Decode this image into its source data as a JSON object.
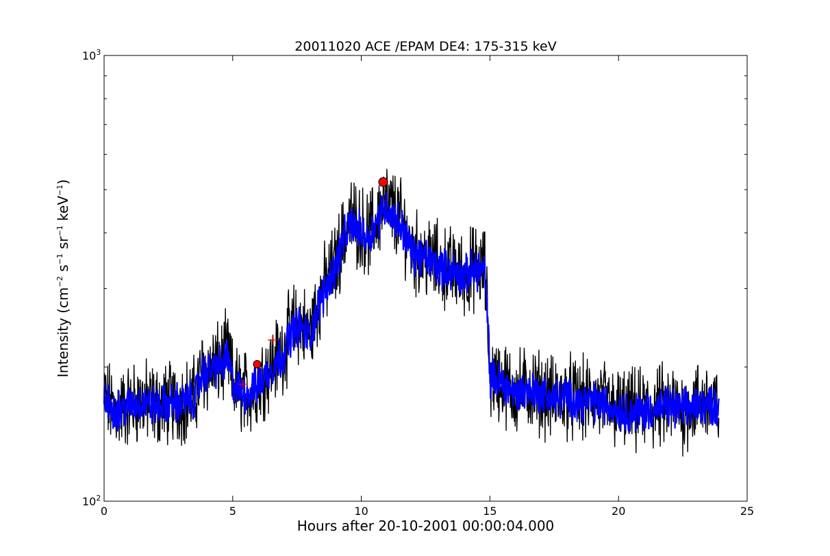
{
  "chart_data": {
    "type": "line",
    "title": "20011020 ACE /EPAM DE4: 175-315 keV",
    "xlabel": "Hours after 20-10-2001 00:00:04.000",
    "ylabel": "Intensity (cm⁻² s⁻¹ sr⁻¹ keV⁻¹)",
    "ylabel_parts": {
      "prefix": "Intensity (cm",
      "e1": "−2",
      "s": " s",
      "e2": "−1",
      "sr": " sr",
      "e3": "−1",
      "kev": " keV",
      "e4": "−1",
      "suffix": ")"
    },
    "xlim": [
      0,
      25
    ],
    "ylim": [
      100,
      1000
    ],
    "yscale": "log",
    "grid": false,
    "x_ticks": [
      0,
      5,
      10,
      15,
      20,
      25
    ],
    "x_tick_labels": [
      "0",
      "5",
      "10",
      "15",
      "20",
      "25"
    ],
    "y_tick_labels": [
      {
        "base": "10",
        "exp": "2",
        "value": 100
      },
      {
        "base": "10",
        "exp": "3",
        "value": 1000
      }
    ],
    "series": [
      {
        "color": "#000000",
        "x": [
          0.0,
          0.3,
          0.6,
          1.0,
          1.5,
          2.0,
          2.5,
          3.0,
          3.5,
          3.8,
          4.2,
          4.6,
          4.8,
          5.0,
          5.4,
          5.8,
          6.0,
          6.3,
          6.6,
          7.0,
          7.3,
          7.6,
          8.0,
          8.3,
          8.6,
          9.0,
          9.3,
          9.6,
          10.0,
          10.3,
          10.6,
          10.9,
          11.2,
          11.6,
          12.0,
          12.4,
          12.8,
          13.2,
          13.6,
          14.0,
          14.4,
          14.8,
          15.0,
          15.5,
          16.0,
          16.5,
          17.0,
          17.5,
          18.0,
          18.5,
          19.0,
          19.5,
          20.0,
          20.5,
          21.0,
          21.5,
          22.0,
          22.5,
          23.0,
          23.5,
          23.9
        ],
        "y": [
          170,
          163,
          160,
          165,
          168,
          164,
          166,
          168,
          170,
          195,
          200,
          205,
          215,
          185,
          175,
          178,
          185,
          195,
          205,
          220,
          245,
          252,
          235,
          275,
          305,
          340,
          390,
          430,
          410,
          395,
          430,
          470,
          450,
          420,
          360,
          355,
          345,
          335,
          330,
          320,
          335,
          330,
          190,
          185,
          175,
          180,
          175,
          170,
          172,
          168,
          170,
          165,
          160,
          158,
          160,
          162,
          164,
          160,
          165,
          168,
          162
        ]
      },
      {
        "color": "#0000ff",
        "x": [
          0.0,
          0.3,
          0.6,
          1.0,
          1.5,
          2.0,
          2.5,
          3.0,
          3.5,
          3.8,
          4.2,
          4.6,
          4.8,
          5.0,
          5.4,
          5.8,
          6.0,
          6.3,
          6.6,
          7.0,
          7.3,
          7.6,
          8.0,
          8.3,
          8.6,
          9.0,
          9.3,
          9.6,
          10.0,
          10.3,
          10.6,
          10.9,
          11.2,
          11.6,
          12.0,
          12.4,
          12.8,
          13.2,
          13.6,
          14.0,
          14.4,
          14.8,
          15.0,
          15.5,
          16.0,
          16.5,
          17.0,
          17.5,
          18.0,
          18.5,
          19.0,
          19.5,
          20.0,
          20.5,
          21.0,
          21.5,
          22.0,
          22.5,
          23.0,
          23.5,
          23.9
        ],
        "y": [
          168,
          162,
          160,
          164,
          167,
          163,
          165,
          167,
          169,
          192,
          198,
          202,
          210,
          183,
          174,
          177,
          183,
          192,
          202,
          215,
          240,
          248,
          232,
          270,
          300,
          335,
          385,
          420,
          400,
          390,
          425,
          460,
          440,
          410,
          358,
          352,
          342,
          332,
          328,
          318,
          332,
          328,
          190,
          184,
          174,
          178,
          174,
          170,
          171,
          167,
          168,
          164,
          160,
          158,
          159,
          161,
          163,
          160,
          164,
          166,
          161
        ]
      }
    ],
    "markers": [
      {
        "x": 10.85,
        "y": 520,
        "shape": "circle",
        "color": "#ff0000"
      },
      {
        "x": 5.95,
        "y": 203,
        "shape": "circle",
        "color": "#ff0000"
      },
      {
        "x": 5.4,
        "y": 183,
        "shape": "plus",
        "color": "#ff0000"
      },
      {
        "x": 6.55,
        "y": 230,
        "shape": "plus",
        "color": "#ff0000"
      }
    ]
  }
}
